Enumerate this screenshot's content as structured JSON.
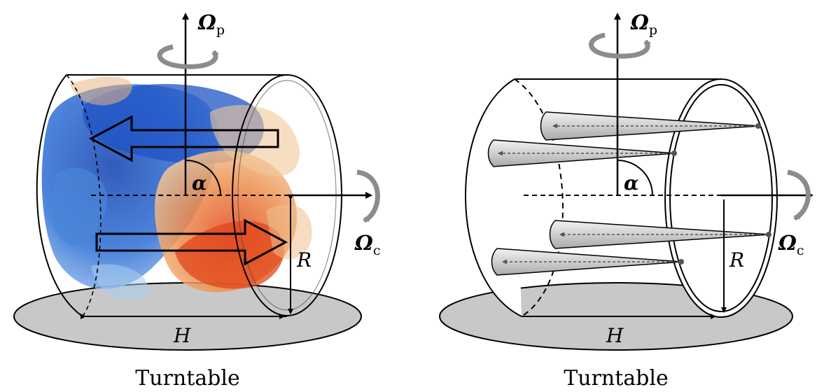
{
  "left_panel": {
    "omega_p": "Ω",
    "omega_p_sub": "p",
    "omega_c": "Ω",
    "omega_c_sub": "c",
    "alpha": "α",
    "radius": "R",
    "height": "H",
    "caption": "Turntable"
  },
  "right_panel": {
    "omega_p": "Ω",
    "omega_p_sub": "p",
    "omega_c": "Ω",
    "omega_c_sub": "c",
    "alpha": "α",
    "radius": "R",
    "height": "H",
    "caption": "Turntable"
  },
  "colors": {
    "turntable": "#c8c8c8",
    "cool_flow": "#1f57c9",
    "warm_flow": "#e0501e",
    "cone": "#d9d9d9",
    "rotation_arrow": "#8c8c8c"
  }
}
